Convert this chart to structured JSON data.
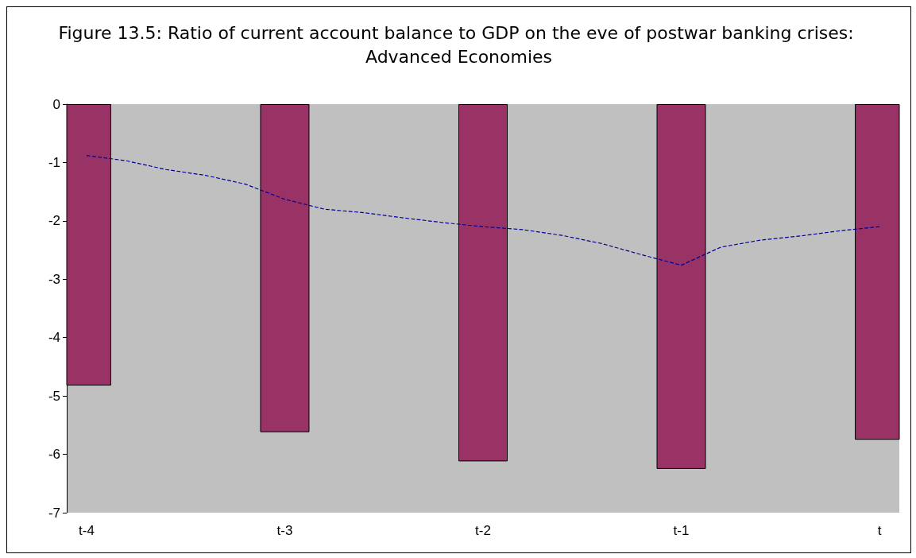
{
  "chart_data": {
    "type": "bar",
    "title": "Figure 13.5: Ratio of current account balance to GDP on the eve of postwar banking crises: Advanced Economies",
    "categories": [
      "t-4",
      null,
      null,
      null,
      null,
      "t-3",
      null,
      null,
      null,
      null,
      "t-2",
      null,
      null,
      null,
      null,
      "t-1",
      null,
      null,
      null,
      null,
      "t"
    ],
    "ylim": [
      -7,
      0
    ],
    "yticks": [
      -7,
      -6,
      -5,
      -4,
      -3,
      -2,
      -1,
      0
    ],
    "grid": false,
    "series": [
      {
        "color": "#993366",
        "values": [
          -4.82,
          null,
          null,
          null,
          null,
          -5.62,
          null,
          null,
          null,
          null,
          -6.12,
          null,
          null,
          null,
          null,
          -6.25,
          null,
          null,
          null,
          null,
          -5.75
        ]
      },
      {
        "type": "line",
        "color": "#000099",
        "line_style": "dashed",
        "marker": "none",
        "values": [
          -0.88,
          -0.97,
          -1.12,
          -1.22,
          -1.37,
          -1.63,
          -1.8,
          -1.86,
          -1.95,
          -2.03,
          -2.1,
          -2.15,
          -2.25,
          -2.39,
          -2.58,
          -2.76,
          -2.45,
          -2.33,
          -2.26,
          -2.17,
          -2.1
        ]
      }
    ]
  }
}
